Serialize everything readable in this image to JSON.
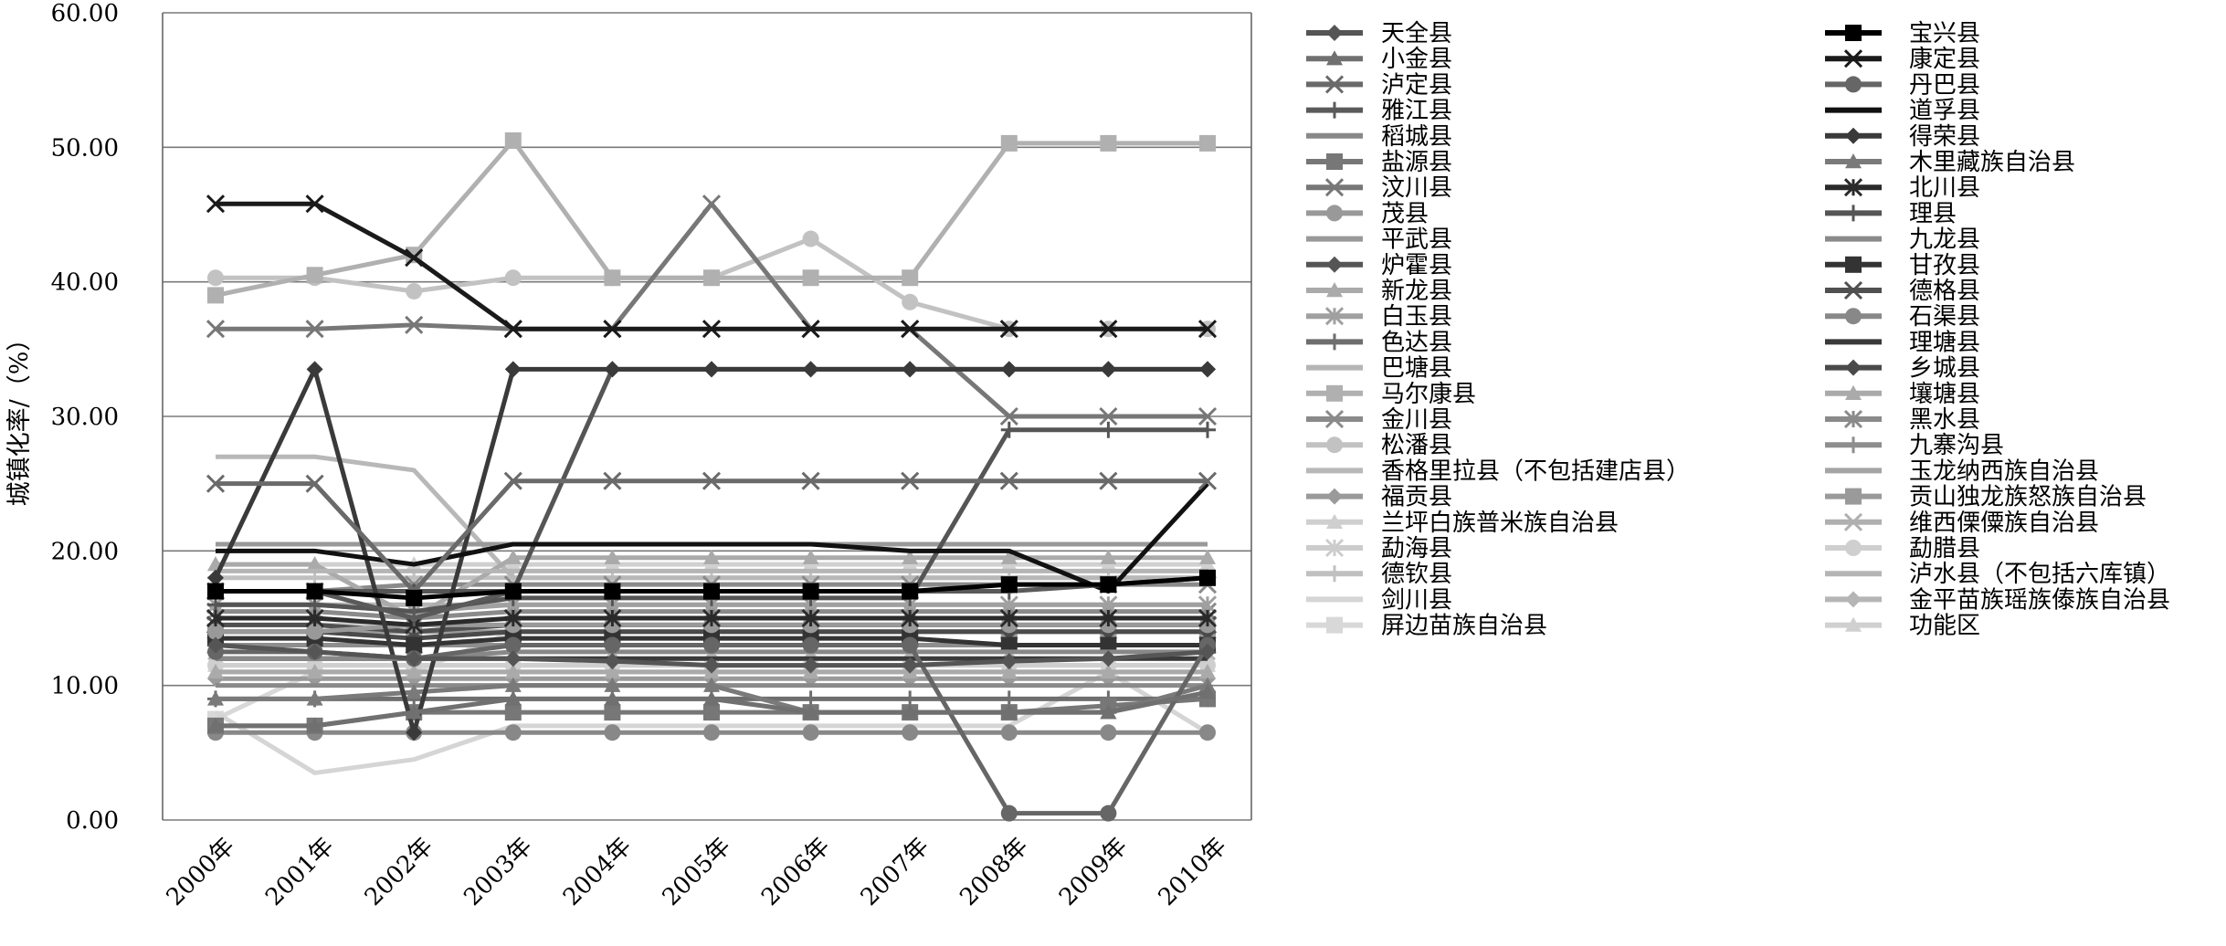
{
  "chart_data": {
    "type": "line",
    "title": "",
    "xlabel": "",
    "ylabel": "城镇化率/（%）",
    "ylim": [
      0,
      60
    ],
    "yticks": [
      "0.00",
      "10.00",
      "20.00",
      "30.00",
      "40.00",
      "50.00",
      "60.00"
    ],
    "grid": "horizontal",
    "legend_position": "right",
    "x": [
      "2000年",
      "2001年",
      "2002年",
      "2003年",
      "2004年",
      "2005年",
      "2006年",
      "2007年",
      "2008年",
      "2009年",
      "2010年"
    ],
    "series": [
      {
        "name": "天全县",
        "color": "#555555",
        "marker": "diamond",
        "values": [
          13.0,
          12.5,
          12.0,
          12.0,
          11.8,
          11.5,
          11.5,
          11.5,
          11.8,
          12.0,
          12.5
        ]
      },
      {
        "name": "宝兴县",
        "color": "#000000",
        "marker": "square",
        "values": [
          17.0,
          17.0,
          16.5,
          17.0,
          17.0,
          17.0,
          17.0,
          17.0,
          17.5,
          17.5,
          18.0
        ]
      },
      {
        "name": "小金县",
        "color": "#707070",
        "marker": "triangle",
        "values": [
          7.0,
          7.0,
          8.0,
          9.0,
          9.0,
          9.0,
          8.0,
          8.0,
          8.0,
          8.0,
          9.5
        ]
      },
      {
        "name": "康定县",
        "color": "#1a1a1a",
        "marker": "x",
        "values": [
          45.8,
          45.8,
          41.8,
          36.5,
          36.5,
          36.5,
          36.5,
          36.5,
          36.5,
          36.5,
          36.5
        ]
      },
      {
        "name": "泸定县",
        "color": "#6a6a6a",
        "marker": "x",
        "values": [
          25.0,
          25.0,
          17.0,
          25.2,
          25.2,
          25.2,
          25.2,
          25.2,
          25.2,
          25.2,
          25.2
        ]
      },
      {
        "name": "丹巴县",
        "color": "#666666",
        "marker": "circle",
        "values": [
          12.5,
          12.5,
          12.0,
          13.0,
          13.0,
          13.0,
          13.0,
          13.0,
          0.5,
          0.5,
          13.0
        ]
      },
      {
        "name": "雅江县",
        "color": "#5a5a5a",
        "marker": "plus",
        "values": [
          17.0,
          17.0,
          15.0,
          17.0,
          17.0,
          17.0,
          17.0,
          17.0,
          17.0,
          17.5,
          18.0
        ]
      },
      {
        "name": "道孚县",
        "color": "#111111",
        "marker": "none",
        "values": [
          20.0,
          20.0,
          19.0,
          20.5,
          20.5,
          20.5,
          20.5,
          20.0,
          20.0,
          17.0,
          25.0
        ]
      },
      {
        "name": "稻城县",
        "color": "#888888",
        "marker": "none",
        "values": [
          12.0,
          12.0,
          12.0,
          12.5,
          12.5,
          12.5,
          12.5,
          12.5,
          12.5,
          12.5,
          12.5
        ]
      },
      {
        "name": "得荣县",
        "color": "#3a3a3a",
        "marker": "diamond",
        "values": [
          18.0,
          33.5,
          6.5,
          33.5,
          33.5,
          33.5,
          33.5,
          33.5,
          33.5,
          33.5,
          33.5
        ]
      },
      {
        "name": "盐源县",
        "color": "#777777",
        "marker": "square",
        "values": [
          7.0,
          7.0,
          8.0,
          8.0,
          8.0,
          8.0,
          8.0,
          8.0,
          8.0,
          8.5,
          9.0
        ]
      },
      {
        "name": "木里藏族自治县",
        "color": "#7a7a7a",
        "marker": "triangle",
        "values": [
          9.0,
          9.0,
          9.5,
          10.0,
          10.0,
          10.0,
          8.0,
          8.0,
          8.0,
          8.0,
          10.0
        ]
      },
      {
        "name": "汶川县",
        "color": "#777777",
        "marker": "x",
        "values": [
          36.5,
          36.5,
          36.8,
          36.5,
          36.5,
          45.8,
          36.5,
          36.5,
          30.0,
          30.0,
          30.0
        ]
      },
      {
        "name": "北川县",
        "color": "#2a2a2a",
        "marker": "star",
        "values": [
          15.0,
          15.0,
          14.5,
          15.0,
          15.0,
          15.0,
          15.0,
          15.0,
          15.0,
          15.0,
          15.0
        ]
      },
      {
        "name": "茂县",
        "color": "#999999",
        "marker": "circle",
        "values": [
          14.0,
          14.0,
          14.5,
          14.5,
          14.5,
          14.5,
          14.5,
          14.5,
          14.5,
          14.5,
          14.5
        ]
      },
      {
        "name": "理县",
        "color": "#555555",
        "marker": "plus",
        "values": [
          16.0,
          16.0,
          15.5,
          16.5,
          16.5,
          16.5,
          16.5,
          16.5,
          29.0,
          29.0,
          29.0
        ]
      },
      {
        "name": "平武县",
        "color": "#999999",
        "marker": "none",
        "values": [
          20.5,
          20.5,
          20.5,
          20.5,
          20.5,
          20.5,
          20.5,
          20.5,
          20.5,
          20.5,
          20.5
        ]
      },
      {
        "name": "九龙县",
        "color": "#8a8a8a",
        "marker": "none",
        "values": [
          10.0,
          10.0,
          10.0,
          10.0,
          10.0,
          10.0,
          10.0,
          10.0,
          10.0,
          10.0,
          10.0
        ]
      },
      {
        "name": "炉霍县",
        "color": "#555555",
        "marker": "diamond",
        "values": [
          17.0,
          17.0,
          17.0,
          17.0,
          33.5,
          33.5,
          33.5,
          33.5,
          33.5,
          33.5,
          33.5
        ]
      },
      {
        "name": "甘孜县",
        "color": "#333333",
        "marker": "square",
        "values": [
          13.5,
          13.5,
          13.0,
          13.5,
          13.5,
          13.5,
          13.5,
          13.5,
          13.0,
          13.0,
          13.0
        ]
      },
      {
        "name": "新龙县",
        "color": "#aaaaaa",
        "marker": "triangle",
        "values": [
          11.0,
          11.0,
          11.0,
          11.0,
          11.0,
          11.0,
          11.0,
          11.0,
          11.0,
          11.0,
          11.0
        ]
      },
      {
        "name": "德格县",
        "color": "#505050",
        "marker": "x",
        "values": [
          14.5,
          14.5,
          14.0,
          14.5,
          14.5,
          14.5,
          14.5,
          14.5,
          14.5,
          14.5,
          14.5
        ]
      },
      {
        "name": "白玉县",
        "color": "#a0a0a0",
        "marker": "star",
        "values": [
          16.0,
          16.0,
          15.5,
          16.0,
          16.0,
          16.0,
          16.0,
          16.0,
          16.0,
          16.0,
          16.0
        ]
      },
      {
        "name": "石渠县",
        "color": "#888888",
        "marker": "circle",
        "values": [
          6.5,
          6.5,
          6.5,
          6.5,
          6.5,
          6.5,
          6.5,
          6.5,
          6.5,
          6.5,
          6.5
        ]
      },
      {
        "name": "色达县",
        "color": "#6e6e6e",
        "marker": "plus",
        "values": [
          9.0,
          9.0,
          9.0,
          9.0,
          9.0,
          9.0,
          9.0,
          9.0,
          9.0,
          9.0,
          9.0
        ]
      },
      {
        "name": "理塘县",
        "color": "#3a3a3a",
        "marker": "none",
        "values": [
          12.0,
          12.0,
          12.0,
          12.0,
          12.0,
          12.0,
          12.0,
          12.0,
          12.0,
          12.0,
          12.0
        ]
      },
      {
        "name": "巴塘县",
        "color": "#b5b5b5",
        "marker": "none",
        "values": [
          18.5,
          18.5,
          18.5,
          18.5,
          18.5,
          18.5,
          18.5,
          18.5,
          18.5,
          18.5,
          18.5
        ]
      },
      {
        "name": "乡城县",
        "color": "#4a4a4a",
        "marker": "diamond",
        "values": [
          14.0,
          14.0,
          13.5,
          14.0,
          14.0,
          14.0,
          14.0,
          14.0,
          14.0,
          14.0,
          14.0
        ]
      },
      {
        "name": "马尔康县",
        "color": "#b0b0b0",
        "marker": "square",
        "values": [
          39.0,
          40.5,
          42.0,
          50.5,
          40.3,
          40.3,
          40.3,
          40.3,
          50.3,
          50.3,
          50.3
        ]
      },
      {
        "name": "壤塘县",
        "color": "#aaaaaa",
        "marker": "triangle",
        "values": [
          19.0,
          19.0,
          15.0,
          19.5,
          19.5,
          19.5,
          19.5,
          19.5,
          19.5,
          19.5,
          19.5
        ]
      },
      {
        "name": "金川县",
        "color": "#8a8a8a",
        "marker": "x",
        "values": [
          17.0,
          17.0,
          17.5,
          17.5,
          17.5,
          17.5,
          17.5,
          17.5,
          17.5,
          17.5,
          17.5
        ]
      },
      {
        "name": "黑水县",
        "color": "#8a8a8a",
        "marker": "star",
        "values": [
          15.5,
          15.5,
          15.0,
          15.5,
          15.5,
          15.5,
          15.5,
          15.5,
          15.5,
          15.5,
          15.5
        ]
      },
      {
        "name": "松潘县",
        "color": "#c2c2c2",
        "marker": "circle",
        "values": [
          40.3,
          40.3,
          39.3,
          40.3,
          40.3,
          40.3,
          43.2,
          38.5,
          36.5,
          36.5,
          36.5
        ]
      },
      {
        "name": "九寨沟县",
        "color": "#8e8e8e",
        "marker": "plus",
        "values": [
          13.0,
          13.0,
          13.0,
          13.0,
          13.0,
          13.0,
          13.0,
          13.0,
          13.0,
          13.0,
          13.0
        ]
      },
      {
        "name": "香格里拉县（不包括建店县）",
        "color": "#b8b8b8",
        "marker": "none",
        "values": [
          27.0,
          27.0,
          26.0,
          18.0,
          18.0,
          18.0,
          18.0,
          18.0,
          18.0,
          18.0,
          18.0
        ]
      },
      {
        "name": "玉龙纳西族自治县",
        "color": "#a5a5a5",
        "marker": "none",
        "values": [
          11.0,
          11.0,
          11.0,
          11.0,
          11.0,
          11.0,
          11.0,
          11.0,
          11.0,
          11.0,
          11.0
        ]
      },
      {
        "name": "福贡县",
        "color": "#9a9a9a",
        "marker": "diamond",
        "values": [
          10.5,
          10.5,
          10.5,
          10.5,
          10.5,
          10.5,
          10.5,
          10.5,
          10.5,
          10.5,
          10.5
        ]
      },
      {
        "name": "贡山独龙族怒族自治县",
        "color": "#9a9a9a",
        "marker": "square",
        "values": [
          14.0,
          14.0,
          14.0,
          14.0,
          14.0,
          14.0,
          14.0,
          14.0,
          14.0,
          14.0,
          14.0
        ]
      },
      {
        "name": "兰坪白族普米族自治县",
        "color": "#cfcfcf",
        "marker": "triangle",
        "values": [
          11.5,
          11.5,
          11.5,
          11.5,
          11.5,
          11.5,
          11.5,
          11.5,
          11.5,
          11.5,
          11.5
        ]
      },
      {
        "name": "维西傈僳族自治县",
        "color": "#b0b0b0",
        "marker": "x",
        "values": [
          13.0,
          13.0,
          13.0,
          13.0,
          13.0,
          13.0,
          13.0,
          13.0,
          13.0,
          13.0,
          13.0
        ]
      },
      {
        "name": "勐海县",
        "color": "#cccccc",
        "marker": "star",
        "values": [
          14.5,
          14.5,
          14.5,
          14.5,
          14.5,
          14.5,
          14.5,
          14.5,
          14.5,
          14.5,
          14.5
        ]
      },
      {
        "name": "勐腊县",
        "color": "#cfcfcf",
        "marker": "circle",
        "values": [
          11.5,
          11.5,
          11.5,
          11.5,
          11.5,
          11.5,
          11.5,
          11.5,
          11.5,
          11.5,
          11.5
        ]
      },
      {
        "name": "德钦县",
        "color": "#c0c0c0",
        "marker": "plus",
        "values": [
          18.0,
          18.0,
          18.0,
          18.0,
          18.0,
          18.0,
          18.0,
          18.0,
          18.0,
          18.0,
          18.0
        ]
      },
      {
        "name": "泸水县（不包括六库镇）",
        "color": "#b5b5b5",
        "marker": "none",
        "values": [
          16.0,
          16.0,
          16.0,
          16.0,
          16.0,
          16.0,
          16.0,
          16.0,
          16.0,
          16.0,
          16.0
        ]
      },
      {
        "name": "剑川县",
        "color": "#d5d5d5",
        "marker": "none",
        "values": [
          8.0,
          3.5,
          4.5,
          7.0,
          7.0,
          7.0,
          7.0,
          7.0,
          7.0,
          11.0,
          6.5
        ]
      },
      {
        "name": "金平苗族瑶族傣族自治县",
        "color": "#b5b5b5",
        "marker": "diamond",
        "values": [
          12.0,
          12.0,
          12.0,
          12.0,
          12.0,
          12.0,
          12.0,
          12.0,
          12.0,
          12.0,
          12.0
        ]
      },
      {
        "name": "屏边苗族自治县",
        "color": "#d8d8d8",
        "marker": "square",
        "values": [
          7.5,
          11.0,
          11.0,
          14.0,
          14.0,
          14.0,
          14.0,
          14.0,
          14.0,
          14.0,
          14.0
        ]
      },
      {
        "name": "功能区",
        "color": "#d0d0d0",
        "marker": "triangle",
        "values": [
          19.0,
          19.0,
          19.0,
          19.0,
          19.0,
          19.0,
          19.0,
          19.0,
          19.0,
          19.0,
          19.0
        ]
      }
    ]
  }
}
